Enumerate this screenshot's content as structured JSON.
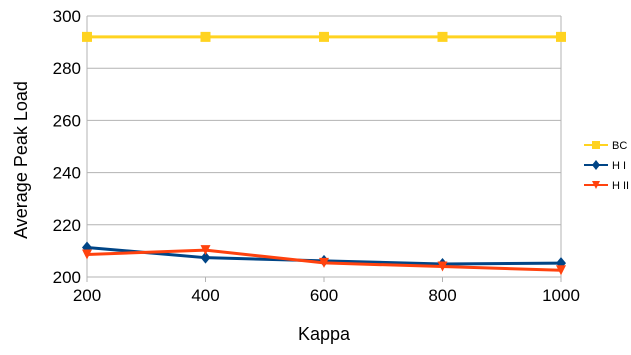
{
  "chart_data": {
    "type": "line",
    "title": "",
    "xlabel": "Kappa",
    "ylabel": "Average Peak Load",
    "x": [
      200,
      400,
      600,
      800,
      1000
    ],
    "xlim": [
      200,
      1000
    ],
    "ylim": [
      200,
      300
    ],
    "xticks": [
      200,
      400,
      600,
      800,
      1000
    ],
    "yticks": [
      200,
      220,
      240,
      260,
      280,
      300
    ],
    "grid": "horizontal",
    "legend_position": "right",
    "series": [
      {
        "name": "BC",
        "values": [
          292,
          292,
          292,
          292,
          292
        ],
        "color": "#ffd320",
        "marker": "square"
      },
      {
        "name": "H I",
        "values": [
          211.3,
          207.4,
          206.2,
          205,
          205.3
        ],
        "color": "#004586",
        "marker": "diamond"
      },
      {
        "name": "H II",
        "values": [
          208.6,
          210.3,
          205.4,
          204,
          202.6
        ],
        "color": "#ff420e",
        "marker": "triangle-down"
      }
    ]
  }
}
